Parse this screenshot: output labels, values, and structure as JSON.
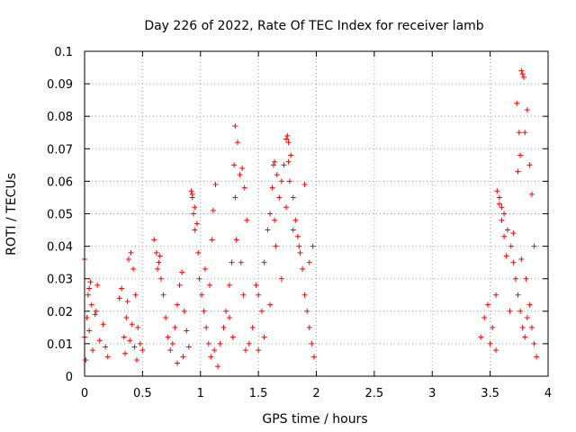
{
  "chart_data": {
    "type": "scatter",
    "title": "Day 226 of 2022, Rate Of TEC Index for receiver lamb",
    "xlabel": "GPS time / hours",
    "ylabel": "ROTI / TECUs",
    "xlim": [
      0,
      4
    ],
    "ylim": [
      0,
      0.1
    ],
    "xticks": [
      0,
      0.5,
      1,
      1.5,
      2,
      2.5,
      3,
      3.5,
      4
    ],
    "xtick_labels": [
      "0",
      "0.5",
      "1",
      "1.5",
      "2",
      "2.5",
      "3",
      "3.5",
      "4"
    ],
    "yticks": [
      0,
      0.01,
      0.02,
      0.03,
      0.04,
      0.05,
      0.06,
      0.07,
      0.08,
      0.09,
      0.1
    ],
    "ytick_labels": [
      "0",
      "0.01",
      "0.02",
      "0.03",
      "0.04",
      "0.05",
      "0.06",
      "0.07",
      "0.08",
      "0.09",
      "0.1"
    ],
    "grid": true,
    "marker": "+",
    "color": "#ff0000",
    "series": [
      {
        "name": "ROTI",
        "x": [
          0.0,
          0.02,
          0.03,
          0.05,
          0.07,
          0.01,
          0.04,
          0.06,
          0.09,
          0.11,
          0.13,
          0.16,
          0.18,
          0.2,
          0.0,
          0.04,
          0.1,
          0.3,
          0.32,
          0.34,
          0.36,
          0.38,
          0.4,
          0.42,
          0.44,
          0.46,
          0.48,
          0.5,
          0.35,
          0.39,
          0.41,
          0.43,
          0.37,
          0.45,
          0.6,
          0.62,
          0.64,
          0.66,
          0.68,
          0.7,
          0.72,
          0.74,
          0.76,
          0.78,
          0.8,
          0.82,
          0.84,
          0.86,
          0.88,
          0.9,
          0.63,
          0.65,
          0.8,
          0.85,
          0.92,
          0.93,
          0.95,
          0.97,
          0.99,
          1.01,
          1.03,
          1.05,
          1.07,
          1.09,
          1.11,
          1.13,
          0.93,
          0.94,
          0.95,
          0.98,
          1.04,
          1.08,
          1.1,
          1.12,
          1.15,
          1.17,
          1.2,
          1.22,
          1.25,
          1.27,
          1.3,
          1.32,
          1.34,
          1.36,
          1.38,
          1.4,
          1.29,
          1.3,
          1.31,
          1.35,
          1.37,
          1.25,
          1.28,
          1.39,
          1.42,
          1.45,
          1.48,
          1.5,
          1.53,
          1.55,
          1.58,
          1.6,
          1.62,
          1.64,
          1.66,
          1.68,
          1.63,
          1.64,
          1.65,
          1.7,
          1.6,
          1.55,
          1.5,
          1.7,
          1.72,
          1.74,
          1.76,
          1.78,
          1.8,
          1.82,
          1.84,
          1.86,
          1.88,
          1.9,
          1.92,
          1.94,
          1.96,
          1.98,
          1.75,
          1.76,
          1.77,
          1.74,
          1.8,
          1.85,
          1.9,
          1.94,
          1.97,
          3.42,
          3.45,
          3.48,
          3.5,
          3.52,
          3.55,
          3.58,
          3.6,
          3.62,
          3.65,
          3.68,
          3.7,
          3.72,
          3.74,
          3.76,
          3.78,
          3.8,
          3.82,
          3.84,
          3.86,
          3.88,
          3.9,
          3.56,
          3.58,
          3.6,
          3.62,
          3.64,
          3.7,
          3.73,
          3.75,
          3.76,
          3.77,
          3.78,
          3.79,
          3.8,
          3.82,
          3.84,
          3.86,
          3.88,
          3.74,
          3.77,
          3.81,
          3.67,
          3.55
        ],
        "y": [
          0.012,
          0.018,
          0.025,
          0.029,
          0.008,
          0.005,
          0.014,
          0.022,
          0.019,
          0.028,
          0.011,
          0.016,
          0.009,
          0.006,
          0.036,
          0.027,
          0.02,
          0.024,
          0.027,
          0.012,
          0.018,
          0.036,
          0.038,
          0.033,
          0.025,
          0.015,
          0.01,
          0.008,
          0.007,
          0.011,
          0.016,
          0.009,
          0.023,
          0.005,
          0.042,
          0.038,
          0.035,
          0.03,
          0.025,
          0.018,
          0.012,
          0.008,
          0.01,
          0.015,
          0.022,
          0.028,
          0.032,
          0.02,
          0.014,
          0.009,
          0.033,
          0.037,
          0.004,
          0.006,
          0.057,
          0.055,
          0.052,
          0.047,
          0.03,
          0.025,
          0.02,
          0.015,
          0.01,
          0.006,
          0.051,
          0.059,
          0.056,
          0.05,
          0.045,
          0.038,
          0.033,
          0.028,
          0.042,
          0.008,
          0.003,
          0.01,
          0.015,
          0.02,
          0.028,
          0.035,
          0.077,
          0.072,
          0.062,
          0.064,
          0.058,
          0.048,
          0.065,
          0.055,
          0.042,
          0.035,
          0.025,
          0.018,
          0.012,
          0.008,
          0.01,
          0.015,
          0.028,
          0.025,
          0.02,
          0.035,
          0.045,
          0.05,
          0.058,
          0.066,
          0.062,
          0.055,
          0.065,
          0.048,
          0.04,
          0.03,
          0.022,
          0.012,
          0.008,
          0.06,
          0.065,
          0.073,
          0.072,
          0.068,
          0.055,
          0.048,
          0.043,
          0.038,
          0.033,
          0.025,
          0.02,
          0.015,
          0.01,
          0.006,
          0.074,
          0.066,
          0.06,
          0.052,
          0.045,
          0.04,
          0.059,
          0.035,
          0.04,
          0.012,
          0.018,
          0.022,
          0.01,
          0.015,
          0.025,
          0.055,
          0.052,
          0.05,
          0.045,
          0.04,
          0.035,
          0.03,
          0.025,
          0.02,
          0.015,
          0.012,
          0.018,
          0.022,
          0.015,
          0.01,
          0.006,
          0.057,
          0.053,
          0.048,
          0.043,
          0.037,
          0.044,
          0.084,
          0.075,
          0.068,
          0.094,
          0.093,
          0.092,
          0.075,
          0.082,
          0.065,
          0.056,
          0.04,
          0.063,
          0.036,
          0.03,
          0.02,
          0.008
        ]
      }
    ]
  }
}
